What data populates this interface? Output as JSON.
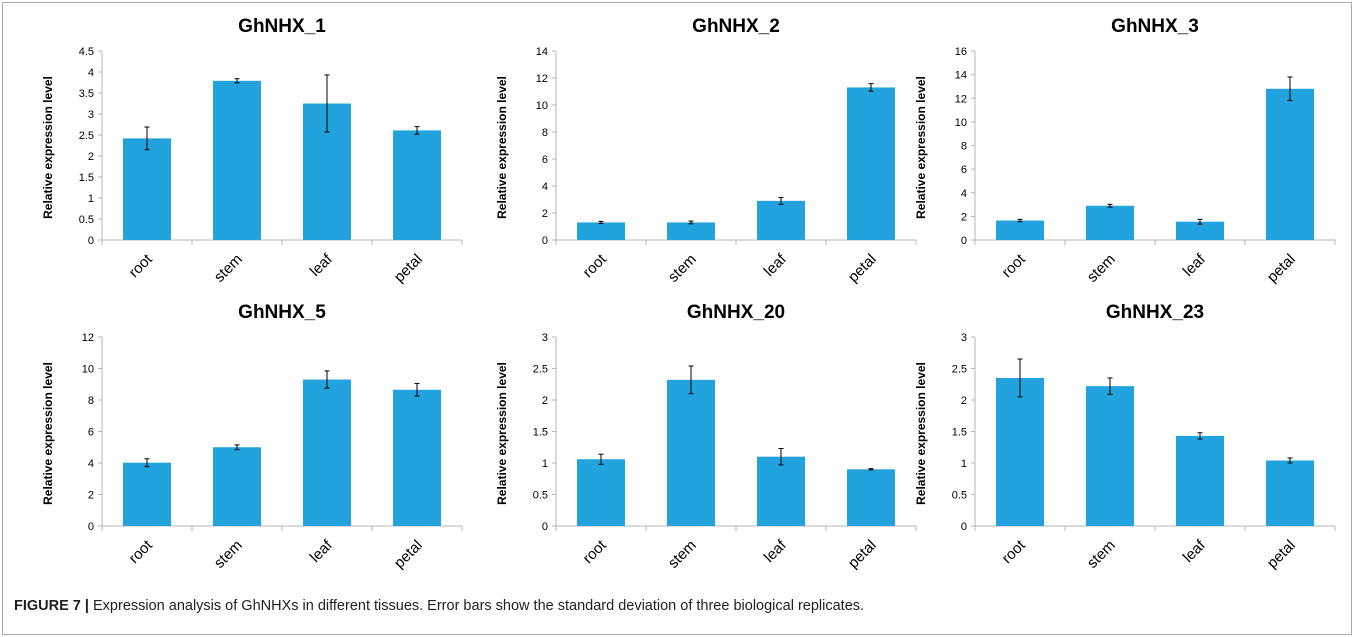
{
  "caption": {
    "label": "FIGURE 7 |",
    "text": "Expression analysis of GhNHXs in different tissues. Error bars show the standard deviation of three biological replicates."
  },
  "colors": {
    "bar": "#22a3dd",
    "axis": "#b5b5b5",
    "text": "#000000"
  },
  "chart_data": [
    {
      "type": "bar",
      "title": "GhNHX_1",
      "ylabel": "Relative expression level",
      "xlabel": "",
      "categories": [
        "root",
        "stem",
        "leaf",
        "petal"
      ],
      "values": [
        2.42,
        3.79,
        3.25,
        2.61
      ],
      "errors": [
        0.27,
        0.05,
        0.68,
        0.09
      ],
      "ylim": [
        0,
        4.5
      ],
      "yticks": [
        "0",
        "0.5",
        "1",
        "1.5",
        "2",
        "2.5",
        "3",
        "3.5",
        "4",
        "4.5"
      ],
      "grid": false
    },
    {
      "type": "bar",
      "title": "GhNHX_2",
      "ylabel": "Relative expression level",
      "xlabel": "",
      "categories": [
        "root",
        "stem",
        "leaf",
        "petal"
      ],
      "values": [
        1.3,
        1.3,
        2.9,
        11.3
      ],
      "errors": [
        0.08,
        0.1,
        0.25,
        0.28
      ],
      "ylim": [
        0,
        14
      ],
      "yticks": [
        "0",
        "2",
        "4",
        "6",
        "8",
        "10",
        "12",
        "14"
      ],
      "grid": false
    },
    {
      "type": "bar",
      "title": "GhNHX_3",
      "ylabel": "Relative expression level",
      "xlabel": "",
      "categories": [
        "root",
        "stem",
        "leaf",
        "petal"
      ],
      "values": [
        1.65,
        2.9,
        1.55,
        12.8
      ],
      "errors": [
        0.1,
        0.12,
        0.2,
        1.0
      ],
      "ylim": [
        0,
        16
      ],
      "yticks": [
        "0",
        "2",
        "4",
        "6",
        "8",
        "10",
        "12",
        "14",
        "16"
      ],
      "grid": false
    },
    {
      "type": "bar",
      "title": "GhNHX_5",
      "ylabel": "Relative expression level",
      "xlabel": "",
      "categories": [
        "root",
        "stem",
        "leaf",
        "petal"
      ],
      "values": [
        4.02,
        5.0,
        9.3,
        8.65
      ],
      "errors": [
        0.25,
        0.15,
        0.55,
        0.4
      ],
      "ylim": [
        0,
        12
      ],
      "yticks": [
        "0",
        "2",
        "4",
        "6",
        "8",
        "10",
        "12"
      ],
      "grid": false
    },
    {
      "type": "bar",
      "title": "GhNHX_20",
      "ylabel": "Relative expression level",
      "xlabel": "",
      "categories": [
        "root",
        "stem",
        "leaf",
        "petal"
      ],
      "values": [
        1.06,
        2.32,
        1.1,
        0.9
      ],
      "errors": [
        0.08,
        0.22,
        0.13,
        0.01
      ],
      "ylim": [
        0,
        3
      ],
      "yticks": [
        "0",
        "0.5",
        "1",
        "1.5",
        "2",
        "2.5",
        "3"
      ],
      "grid": false
    },
    {
      "type": "bar",
      "title": "GhNHX_23",
      "ylabel": "Relative expression level",
      "xlabel": "",
      "categories": [
        "root",
        "stem",
        "leaf",
        "petal"
      ],
      "values": [
        2.35,
        2.22,
        1.43,
        1.04
      ],
      "errors": [
        0.3,
        0.13,
        0.05,
        0.04
      ],
      "ylim": [
        0,
        3
      ],
      "yticks": [
        "0",
        "0.5",
        "1",
        "1.5",
        "2",
        "2.5",
        "3"
      ],
      "grid": false
    }
  ]
}
